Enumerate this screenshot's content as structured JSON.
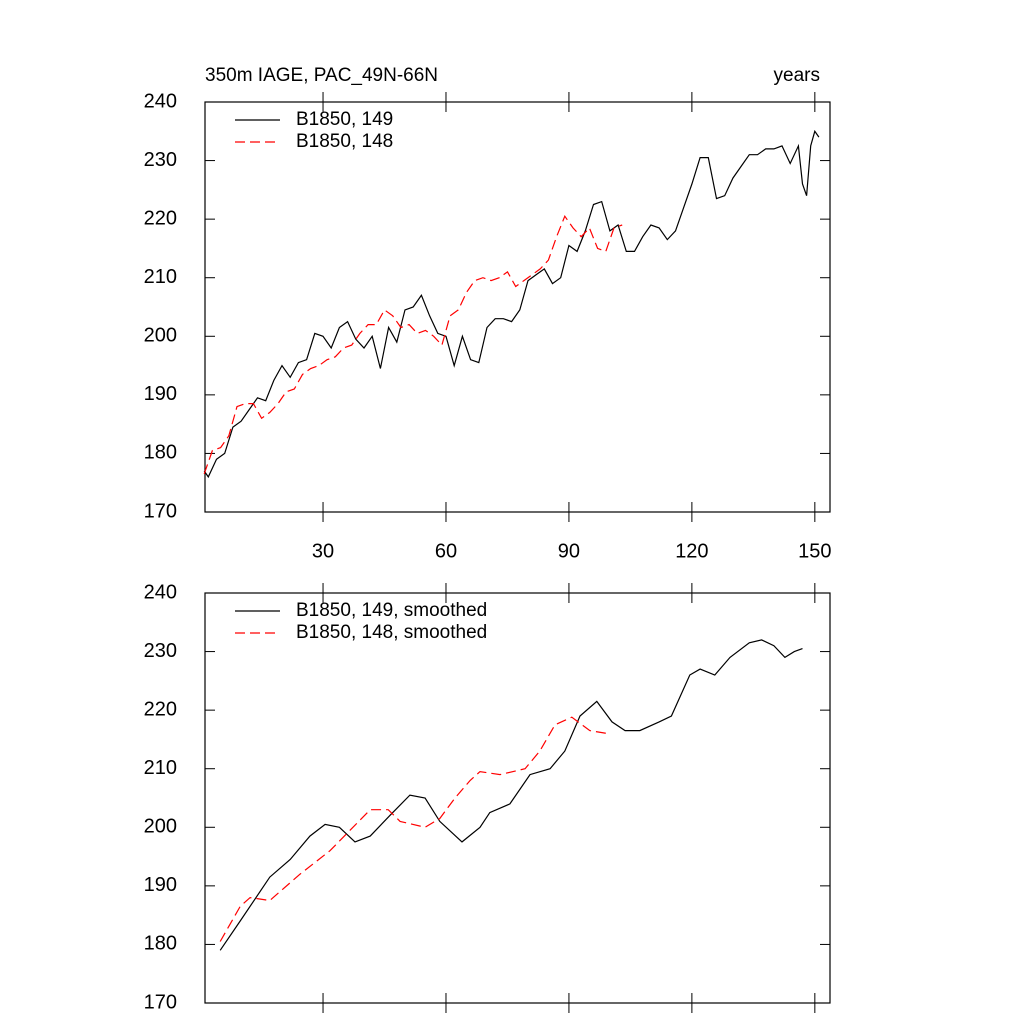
{
  "chart_data": [
    {
      "type": "line",
      "title": "350m IAGE, PAC_49N-66N",
      "right_title": "years",
      "xlim": [
        1.2,
        153.7
      ],
      "xticks": [
        30,
        60,
        90,
        120,
        150
      ],
      "ylim": [
        170,
        240
      ],
      "yticks": [
        170,
        180,
        190,
        200,
        210,
        220,
        230,
        240
      ],
      "series": [
        {
          "name": "B1850, 149",
          "color": "#000000",
          "dashed": false,
          "x": [
            1,
            2,
            4,
            6,
            8,
            10,
            12,
            14,
            16,
            18,
            20,
            22,
            24,
            26,
            28,
            30,
            32,
            34,
            36,
            38,
            40,
            42,
            44,
            46,
            48,
            50,
            52,
            54,
            56,
            58,
            60,
            62,
            64,
            66,
            68,
            70,
            72,
            74,
            76,
            78,
            80,
            82,
            84,
            86,
            88,
            90,
            92,
            94,
            96,
            98,
            100,
            102,
            104,
            106,
            108,
            110,
            112,
            114,
            116,
            118,
            120,
            122,
            124,
            126,
            128,
            130,
            132,
            134,
            136,
            138,
            140,
            142,
            144,
            146,
            147,
            148,
            149,
            150,
            151
          ],
          "values": [
            177,
            176,
            179,
            180,
            184.5,
            185.5,
            187.5,
            189.5,
            189,
            192.5,
            195,
            193,
            195.5,
            196,
            200.5,
            200,
            198,
            201.5,
            202.5,
            199.5,
            198,
            200,
            194.5,
            201.5,
            199,
            204.5,
            205,
            207,
            203.5,
            200.5,
            200,
            195,
            200,
            196,
            195.5,
            201.5,
            203,
            203,
            202.5,
            204.5,
            209.5,
            210.5,
            211.5,
            209,
            210,
            215.5,
            214.5,
            218,
            222.5,
            223,
            218,
            219,
            214.5,
            214.5,
            217,
            219,
            218.5,
            216.5,
            218,
            222,
            226,
            230.5,
            230.5,
            223.5,
            224,
            227,
            229,
            231,
            231,
            232,
            232,
            232.5,
            229.5,
            232.5,
            226,
            224,
            232.5,
            235,
            234
          ]
        },
        {
          "name": "B1850, 148",
          "color": "#ff0000",
          "dashed": true,
          "x": [
            1,
            3,
            5,
            7,
            9,
            11,
            13,
            15,
            17,
            19,
            21,
            23,
            25,
            27,
            29,
            31,
            33,
            35,
            37,
            39,
            41,
            43,
            45,
            47,
            49,
            51,
            53,
            55,
            57,
            59,
            61,
            63,
            65,
            67,
            69,
            71,
            73,
            75,
            77,
            79,
            81,
            83,
            85,
            87,
            89,
            91,
            93,
            95,
            97,
            99,
            101,
            103
          ],
          "values": [
            176.5,
            180.5,
            181,
            183,
            188,
            188.5,
            188.5,
            186,
            187,
            188.5,
            190.5,
            191,
            193.5,
            194.5,
            195,
            196,
            196.5,
            198,
            198.5,
            200.5,
            202,
            202,
            204.5,
            203.5,
            201.5,
            202,
            200.5,
            201,
            200,
            198.5,
            203.5,
            204.5,
            207.5,
            209.5,
            210,
            209.5,
            210,
            211,
            208.5,
            209.5,
            210.5,
            211.5,
            213,
            217,
            220.5,
            218.5,
            217,
            218.5,
            215,
            214.5,
            218.5,
            219
          ]
        }
      ]
    },
    {
      "type": "line",
      "xlim": [
        1.2,
        153.7
      ],
      "xticks": [
        30,
        60,
        90,
        120,
        150
      ],
      "ylim": [
        170,
        240
      ],
      "yticks": [
        170,
        180,
        190,
        200,
        210,
        220,
        230,
        240
      ],
      "series": [
        {
          "name": "B1850, 149, smoothed",
          "color": "#000000",
          "dashed": false,
          "x": [
            4.9,
            9.8,
            17,
            22,
            26.8,
            30.5,
            34,
            37.8,
            41.5,
            46.3,
            51.2,
            54.9,
            58.5,
            63.9,
            68.3,
            70.7,
            75.6,
            80.5,
            85.4,
            89,
            92.7,
            96.8,
            100.5,
            103.7,
            107.3,
            112,
            115,
            119.5,
            122,
            125.6,
            129.3,
            134,
            137,
            140,
            142.7,
            145,
            147
          ],
          "values": [
            179,
            184,
            191.5,
            194.5,
            198.5,
            200.5,
            200,
            197.5,
            198.5,
            202,
            205.5,
            205,
            201,
            197.5,
            200,
            202.5,
            204,
            209,
            210,
            213,
            219,
            221.5,
            218,
            216.5,
            216.5,
            218,
            219,
            226,
            227,
            226,
            229,
            231.5,
            232,
            231,
            229,
            230,
            230.5
          ]
        },
        {
          "name": "B1850, 148, smoothed",
          "color": "#ff0000",
          "dashed": true,
          "x": [
            4.9,
            9.8,
            12.2,
            17,
            24.4,
            31.7,
            36.6,
            41.5,
            45.9,
            48.8,
            54.9,
            58.5,
            62.2,
            65.9,
            68.3,
            73.2,
            79.3,
            82.9,
            86.6,
            90.7,
            95.1,
            99.5
          ],
          "values": [
            180.5,
            186.5,
            188,
            187.5,
            192,
            196,
            199.5,
            203,
            203,
            201,
            200,
            201.5,
            205,
            208,
            209.5,
            209,
            210,
            213,
            217.5,
            218.8,
            216.5,
            216
          ]
        }
      ]
    }
  ]
}
